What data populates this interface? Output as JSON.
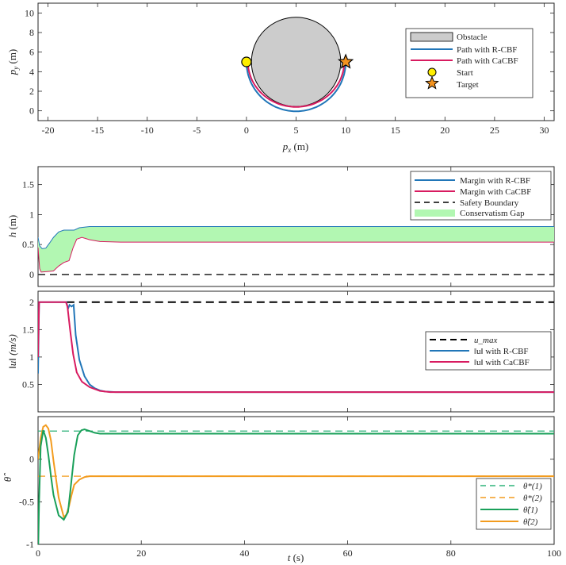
{
  "colors": {
    "rcbf": "#2176b8",
    "cacbf": "#d81b60",
    "obstacle": "#cccccc",
    "gap": "#b2f7b2",
    "theta1": "#1aa05a",
    "theta2": "#f39c1f",
    "start": "#ffee00",
    "target": "#f3931f"
  },
  "chart_data": [
    {
      "type": "line",
      "title": "",
      "xlabel_var": "p",
      "xlabel_sub": "x",
      "xlabel_unit": "(m)",
      "ylabel_var": "p",
      "ylabel_sub": "y",
      "ylabel_unit": "(m)",
      "xlim": [
        -21,
        31
      ],
      "ylim": [
        -1,
        11
      ],
      "xticks": [
        "-20",
        "-15",
        "-10",
        "-5",
        "0",
        "5",
        "10",
        "15",
        "20",
        "25",
        "30"
      ],
      "yticks": [
        "0",
        "2",
        "4",
        "6",
        "8",
        "10"
      ],
      "obstacle": {
        "cx": 5,
        "cy": 5,
        "r": 4.5
      },
      "start": [
        0,
        5
      ],
      "target": [
        10,
        5
      ],
      "legend": [
        "Obstacle",
        "Path with R-CBF",
        "Path with CaCBF",
        "Start",
        "Target"
      ]
    },
    {
      "type": "area",
      "ylabel_var": "h",
      "ylabel_unit": "(m)",
      "xlim": [
        0,
        100
      ],
      "ylim": [
        -0.2,
        1.8
      ],
      "yticks": [
        "0",
        "0.5",
        "1",
        "1.5"
      ],
      "series": [
        {
          "name": "Margin with R-CBF",
          "x": [
            0,
            0.3,
            0.8,
            1.5,
            2.2,
            3,
            4,
            5,
            6,
            7,
            8,
            10,
            14,
            20,
            100
          ],
          "y": [
            0.62,
            0.48,
            0.43,
            0.44,
            0.52,
            0.62,
            0.71,
            0.74,
            0.74,
            0.74,
            0.78,
            0.8,
            0.8,
            0.8,
            0.8
          ]
        },
        {
          "name": "Margin with CaCBF",
          "x": [
            0,
            0.3,
            0.6,
            2,
            3,
            4,
            5,
            6,
            6.8,
            7.5,
            8.5,
            10,
            12,
            16,
            100
          ],
          "y": [
            0.45,
            0.1,
            0.04,
            0.05,
            0.06,
            0.14,
            0.2,
            0.23,
            0.45,
            0.59,
            0.62,
            0.58,
            0.55,
            0.54,
            0.54
          ]
        },
        {
          "name": "Safety Boundary",
          "x": [
            0,
            100
          ],
          "y": [
            0,
            0
          ]
        }
      ],
      "legend": [
        "Margin with R-CBF",
        "Margin with CaCBF",
        "Safety Boundary",
        "Conservatism Gap"
      ]
    },
    {
      "type": "line",
      "ylabel_text": "‖u‖ (m/s)",
      "xlim": [
        0,
        100
      ],
      "ylim": [
        0,
        2.2
      ],
      "yticks": [
        "0.5",
        "1",
        "1.5",
        "2"
      ],
      "series": [
        {
          "name": "u_max",
          "x": [
            0,
            100
          ],
          "y": [
            2,
            2
          ]
        },
        {
          "name": "‖u‖ with R-CBF",
          "x": [
            0,
            0.2,
            0.6,
            5.5,
            5.8,
            6.1,
            6.5,
            6.9,
            7.3,
            8,
            9,
            10,
            11,
            12,
            13,
            15,
            100
          ],
          "y": [
            0.7,
            2.0,
            2.0,
            2.0,
            1.88,
            1.95,
            1.92,
            1.95,
            1.4,
            0.95,
            0.65,
            0.5,
            0.43,
            0.39,
            0.37,
            0.36,
            0.36
          ]
        },
        {
          "name": "‖u‖ with CaCBF",
          "x": [
            0,
            0.2,
            0.6,
            5.4,
            5.7,
            6.2,
            6.8,
            7.5,
            8.5,
            10,
            12,
            14,
            100
          ],
          "y": [
            1.0,
            2.0,
            2.0,
            2.0,
            1.92,
            1.5,
            1.05,
            0.72,
            0.55,
            0.45,
            0.38,
            0.36,
            0.36
          ]
        }
      ],
      "legend": [
        "u_max",
        "‖u‖ with R-CBF",
        "‖u‖ with CaCBF"
      ]
    },
    {
      "type": "line",
      "ylabel_text": "θ̂",
      "xlabel_var": "t",
      "xlabel_unit": "(s)",
      "xlim": [
        0,
        100
      ],
      "ylim": [
        -1,
        0.5
      ],
      "xticks": [
        "0",
        "20",
        "40",
        "60",
        "80",
        "100"
      ],
      "yticks": [
        "-1",
        "-0.5",
        "0"
      ],
      "series": [
        {
          "name": "θ*(1)",
          "x": [
            0,
            100
          ],
          "y": [
            0.33,
            0.33
          ]
        },
        {
          "name": "θ*(2)",
          "x": [
            0,
            100
          ],
          "y": [
            -0.2,
            -0.2
          ]
        },
        {
          "name": "θ̂(1)",
          "x": [
            0,
            0.05,
            0.2,
            0.5,
            1,
            1.5,
            2,
            2.5,
            3,
            4,
            5,
            5.8,
            6.3,
            7,
            7.7,
            8.4,
            9,
            10,
            11,
            12,
            14,
            17,
            100
          ],
          "y": [
            -1.0,
            -1.0,
            -0.5,
            0.15,
            0.34,
            0.25,
            0.05,
            -0.2,
            -0.42,
            -0.66,
            -0.71,
            -0.62,
            -0.35,
            0.05,
            0.28,
            0.34,
            0.35,
            0.33,
            0.31,
            0.3,
            0.3,
            0.3,
            0.3
          ]
        },
        {
          "name": "θ̂(2)",
          "x": [
            0,
            0.5,
            1,
            1.5,
            2,
            2.5,
            3,
            4,
            5,
            5.5,
            6,
            6.5,
            7,
            8,
            9,
            10,
            12,
            100
          ],
          "y": [
            0.0,
            0.25,
            0.38,
            0.4,
            0.36,
            0.22,
            -0.02,
            -0.45,
            -0.68,
            -0.65,
            -0.55,
            -0.42,
            -0.3,
            -0.24,
            -0.21,
            -0.2,
            -0.2,
            -0.2
          ]
        }
      ],
      "legend": [
        "θ*(1)",
        "θ*(2)",
        "θ̂(1)",
        "θ̂(2)"
      ]
    }
  ]
}
